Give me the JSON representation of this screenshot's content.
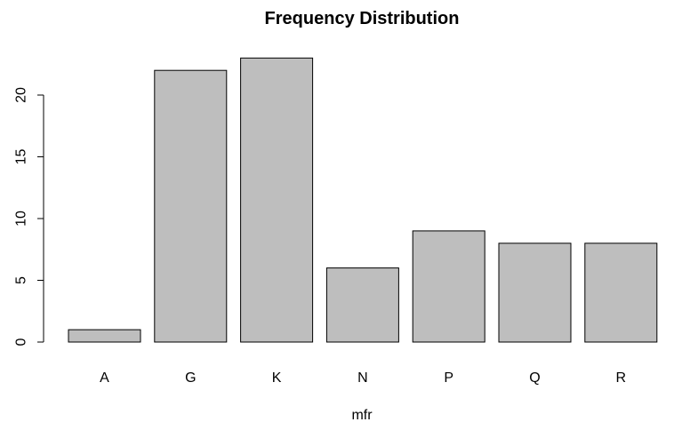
{
  "chart_data": {
    "type": "bar",
    "title": "Frequency Distribution",
    "xlabel": "mfr",
    "ylabel": "",
    "categories": [
      "A",
      "G",
      "K",
      "N",
      "P",
      "Q",
      "R"
    ],
    "values": [
      1,
      22,
      23,
      6,
      9,
      8,
      8
    ],
    "ylim": [
      0,
      23
    ],
    "yticks": [
      0,
      5,
      10,
      15,
      20
    ],
    "bar_color": "#bebebe",
    "grid": false,
    "legend": "none"
  }
}
